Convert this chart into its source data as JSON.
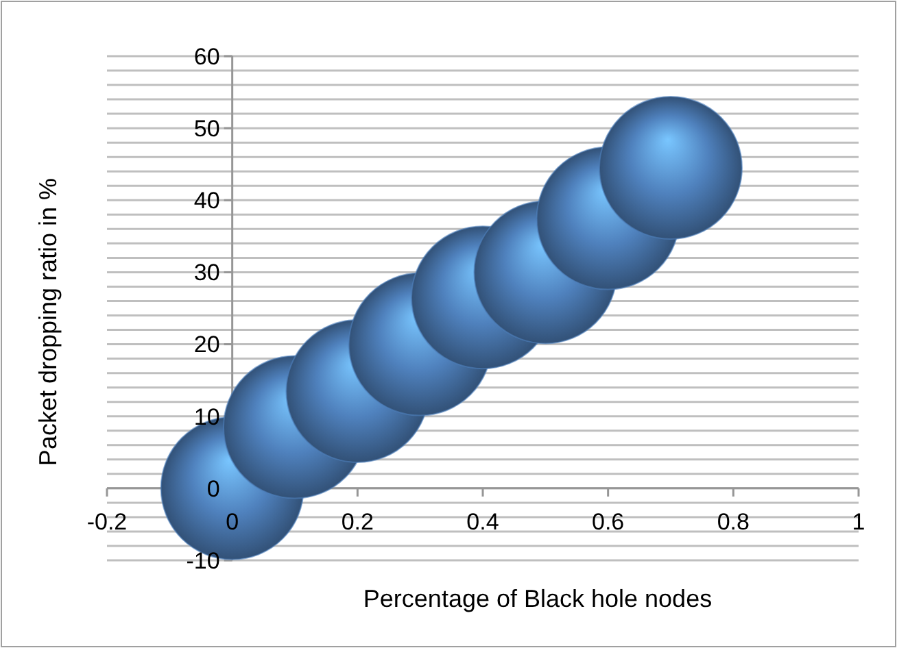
{
  "chart_data": {
    "type": "bubble",
    "xlabel": "Percentage of Black hole nodes",
    "ylabel": "Packet dropping ratio in %",
    "x": [
      0,
      0.1,
      0.2,
      0.3,
      0.4,
      0.5,
      0.6,
      0.7
    ],
    "series": [
      {
        "color": "#4f81bd",
        "values": [
          0,
          8.5,
          13.5,
          20,
          26.5,
          30,
          37.5,
          44.5
        ],
        "sizes": [
          1,
          1,
          1,
          1,
          1,
          1,
          1,
          1
        ]
      }
    ],
    "xlim": [
      -0.2,
      1
    ],
    "xticks": [
      -0.2,
      0,
      0.2,
      0.4,
      0.6,
      0.8,
      1
    ],
    "ylim": [
      -10,
      60
    ],
    "yticks": [
      -10,
      {
        "value": -8,
        "label": null
      },
      {
        "value": -6,
        "label": null
      },
      {
        "value": -4,
        "label": null
      },
      {
        "value": -2,
        "label": null
      },
      0,
      {
        "value": 2,
        "label": null
      },
      {
        "value": 4,
        "label": null
      },
      {
        "value": 6,
        "label": null
      },
      {
        "value": 8,
        "label": null
      },
      10,
      {
        "value": 12,
        "label": null
      },
      {
        "value": 14,
        "label": null
      },
      {
        "value": 16,
        "label": null
      },
      {
        "value": 18,
        "label": null
      },
      20,
      {
        "value": 22,
        "label": null
      },
      {
        "value": 24,
        "label": null
      },
      {
        "value": 26,
        "label": null
      },
      {
        "value": 28,
        "label": null
      },
      30,
      {
        "value": 32,
        "label": null
      },
      {
        "value": 34,
        "label": null
      },
      {
        "value": 36,
        "label": null
      },
      {
        "value": 38,
        "label": null
      },
      40,
      {
        "value": 42,
        "label": null
      },
      {
        "value": 44,
        "label": null
      },
      {
        "value": 46,
        "label": null
      },
      {
        "value": 48,
        "label": null
      },
      50,
      {
        "value": 52,
        "label": null
      },
      {
        "value": 54,
        "label": null
      },
      {
        "value": 56,
        "label": null
      },
      {
        "value": 58,
        "label": null
      },
      60
    ],
    "grid": "y"
  }
}
